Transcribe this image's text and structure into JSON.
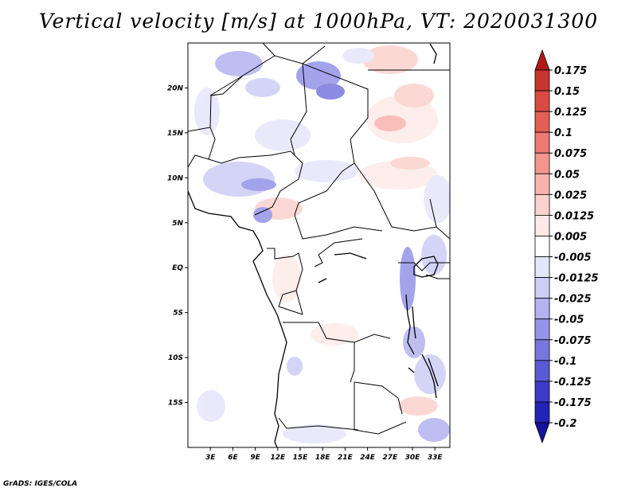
{
  "title": "Vertical velocity [m/s] at 1000hPa, VT: 2020031300",
  "credit": "GrADS: IGES/COLA",
  "map": {
    "lat_labels": [
      "20N",
      "15N",
      "10N",
      "5N",
      "EQ",
      "5S",
      "10S",
      "15S"
    ],
    "lat_values": [
      20,
      15,
      10,
      5,
      0,
      -5,
      -10,
      -15
    ],
    "lon_labels": [
      "3E",
      "6E",
      "9E",
      "12E",
      "15E",
      "18E",
      "21E",
      "24E",
      "27E",
      "30E",
      "33E"
    ],
    "lon_values": [
      3,
      6,
      9,
      12,
      15,
      18,
      21,
      24,
      27,
      30,
      33
    ],
    "lon_range": [
      0,
      35
    ],
    "lat_range": [
      -20,
      25
    ]
  },
  "colorbar": {
    "labels": [
      "0.175",
      "0.15",
      "0.125",
      "0.1",
      "0.075",
      "0.05",
      "0.025",
      "0.0125",
      "0.005",
      "-0.005",
      "-0.0125",
      "-0.025",
      "-0.05",
      "-0.075",
      "-0.1",
      "-0.125",
      "-0.175",
      "-0.2"
    ],
    "colors": [
      "#b01a1a",
      "#c8332e",
      "#d94a42",
      "#e55e55",
      "#ec7a72",
      "#f2968f",
      "#f7b4ae",
      "#fbd2cd",
      "#fdeae8",
      "#ffffff",
      "#e6e6fb",
      "#cdcdf6",
      "#b3b3f0",
      "#9494e8",
      "#7777df",
      "#5a5ad4",
      "#3c3cc8",
      "#2323b5",
      "#14149a"
    ]
  }
}
